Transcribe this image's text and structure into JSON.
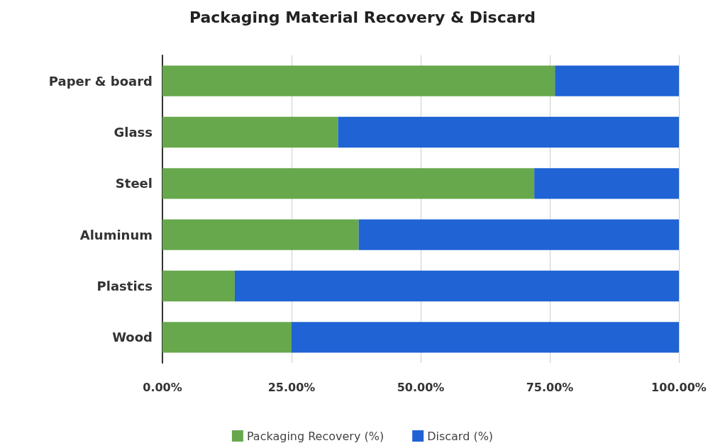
{
  "chart_data": {
    "type": "bar",
    "title": "Packaging Material Recovery & Discard",
    "orientation": "horizontal",
    "stacked": true,
    "categories": [
      "Paper & board",
      "Glass",
      "Steel",
      "Aluminum",
      "Plastics",
      "Wood"
    ],
    "series": [
      {
        "name": "Packaging Recovery (%)",
        "color": "#67a84c",
        "values": [
          76,
          34,
          72,
          38,
          14,
          25
        ]
      },
      {
        "name": "Discard (%)",
        "color": "#1f63d4",
        "values": [
          24,
          66,
          28,
          62,
          86,
          75
        ]
      }
    ],
    "xlim": [
      0,
      100
    ],
    "xticks": [
      {
        "value": 0,
        "label": "0.00%"
      },
      {
        "value": 25,
        "label": "25.00%"
      },
      {
        "value": 50,
        "label": "50.00%"
      },
      {
        "value": 75,
        "label": "75.00%"
      },
      {
        "value": 100,
        "label": "100.00%"
      }
    ],
    "grid": "x",
    "legend": "bottom"
  }
}
